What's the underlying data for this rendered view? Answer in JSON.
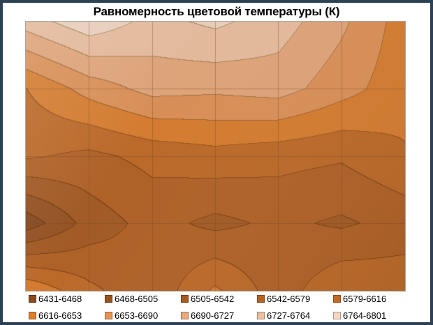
{
  "title": "Равномерность цветовой температуры (К)",
  "chart_data": {
    "type": "heatmap",
    "subtype": "filled-contour-surface",
    "title": "Равномерность цветовой температуры (К)",
    "xlabel": "",
    "ylabel": "",
    "axes_visible": false,
    "grid": true,
    "legend_position": "bottom",
    "rows": 5,
    "cols": 7,
    "value_range": [
      6431,
      6801
    ],
    "band_size": 37,
    "values": [
      [
        6745,
        6790,
        6752,
        6772,
        6745,
        6698,
        6635
      ],
      [
        6615,
        6668,
        6703,
        6698,
        6706,
        6668,
        6630
      ],
      [
        6585,
        6570,
        6590,
        6602,
        6592,
        6584,
        6612
      ],
      [
        6445,
        6520,
        6556,
        6532,
        6550,
        6536,
        6556
      ],
      [
        6650,
        6588,
        6550,
        6622,
        6558,
        6612,
        6605
      ]
    ],
    "bands": [
      {
        "label": "6431-6468",
        "color": "#8B4A1D"
      },
      {
        "label": "6468-6505",
        "color": "#99521F"
      },
      {
        "label": "6505-6542",
        "color": "#A75A21"
      },
      {
        "label": "6542-6579",
        "color": "#B56223"
      },
      {
        "label": "6579-6616",
        "color": "#C36A25"
      },
      {
        "label": "6616-6653",
        "color": "#DD7E2D"
      },
      {
        "label": "6653-6690",
        "color": "#E29356"
      },
      {
        "label": "6690-6727",
        "color": "#E8A87B"
      },
      {
        "label": "6727-6764",
        "color": "#EEC0A0"
      },
      {
        "label": "6764-6801",
        "color": "#F4D6C2"
      }
    ]
  },
  "frame": {
    "border_color": "#2E4154",
    "plot_border_color": "#A6A6A6",
    "gridline_color": "rgba(120,70,30,0.40)"
  }
}
